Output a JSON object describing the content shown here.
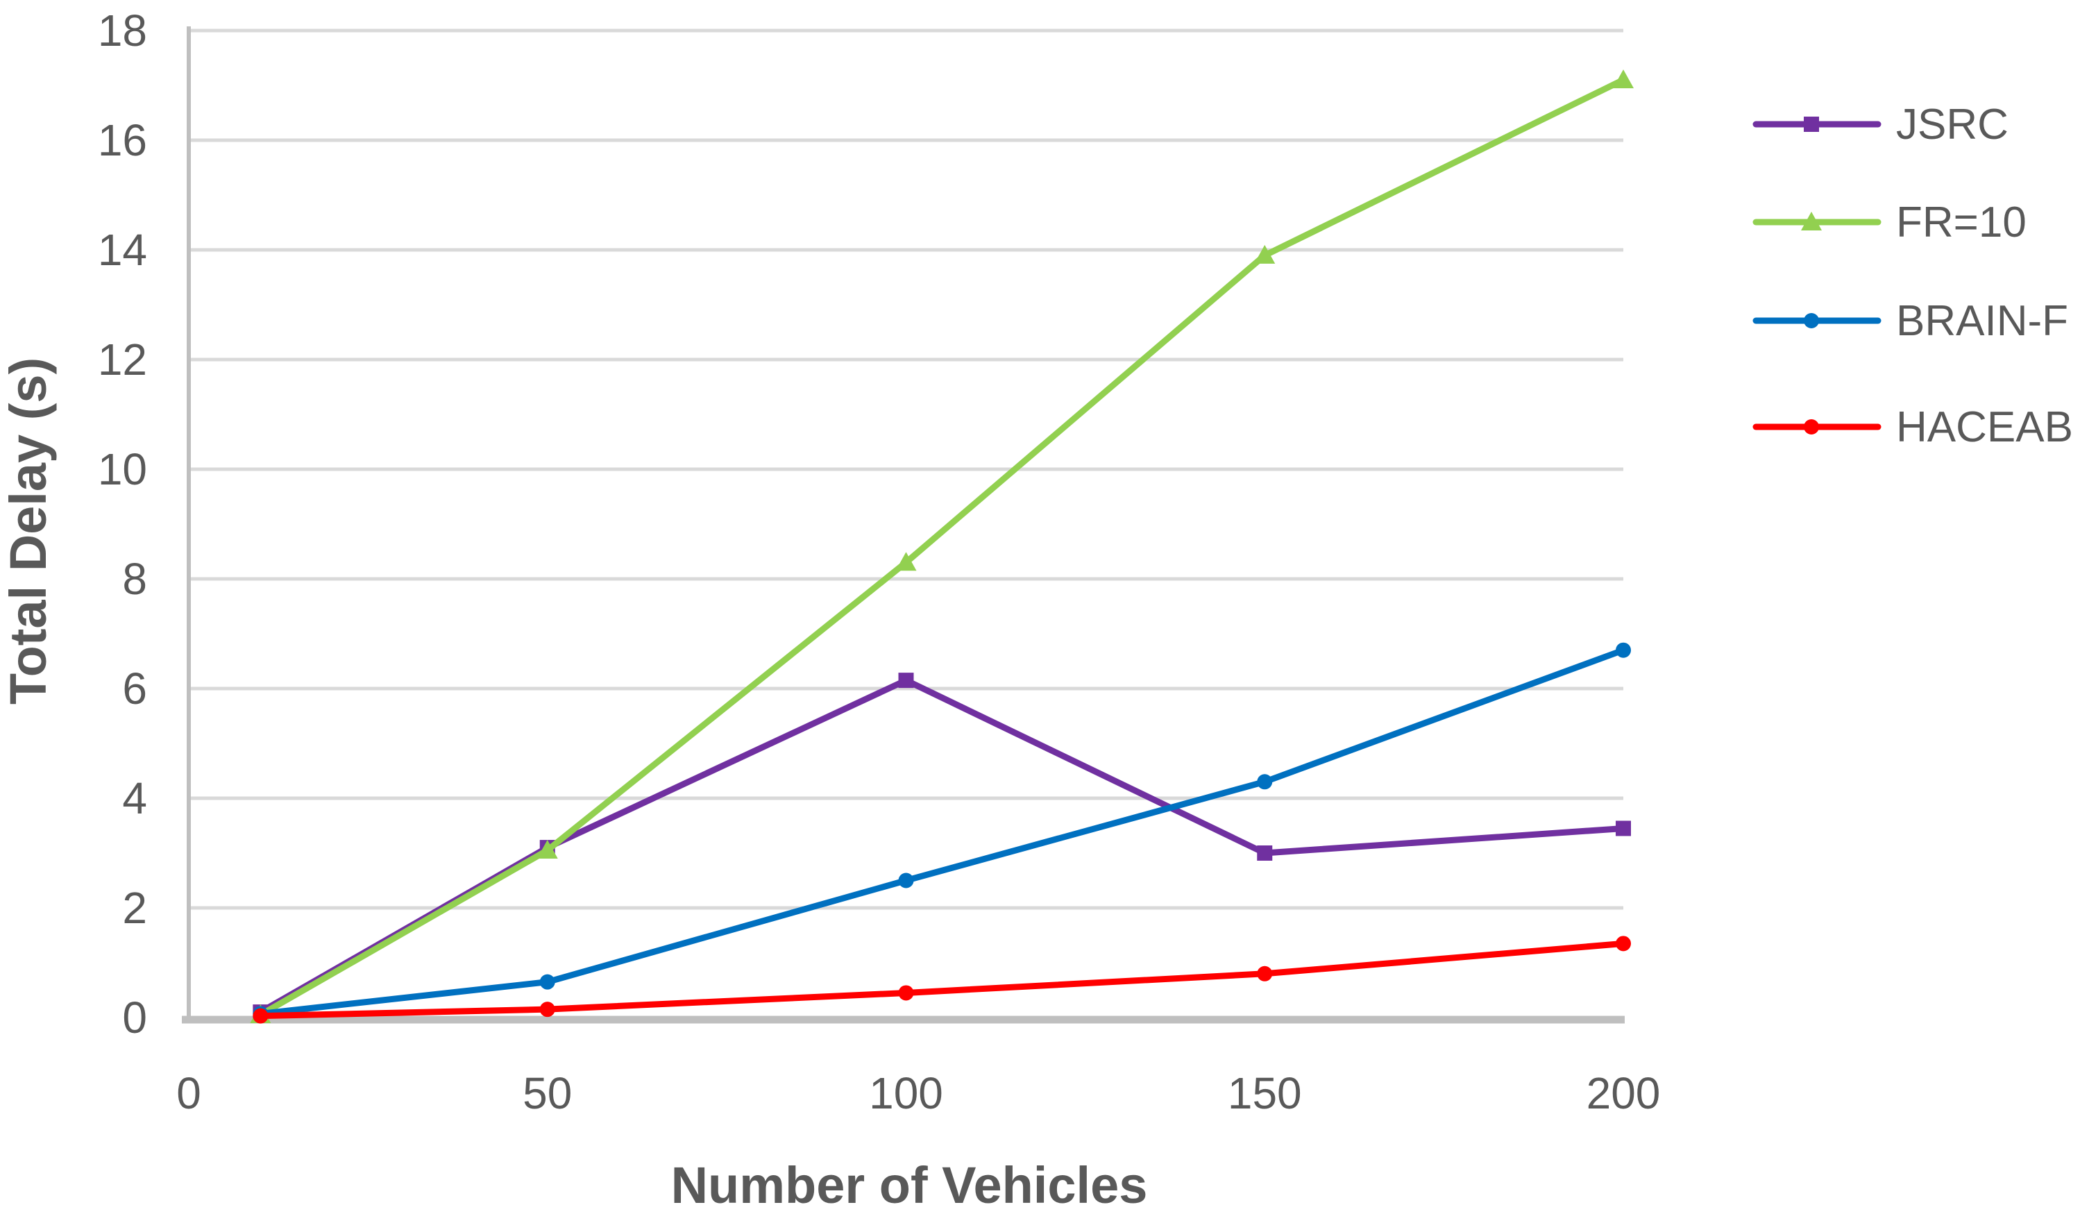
{
  "chart_data": {
    "type": "line",
    "xlabel": "Number of Vehicles",
    "ylabel": "Total Delay (s)",
    "x": [
      10,
      50,
      100,
      150,
      200
    ],
    "series": [
      {
        "name": "JSRC",
        "color": "#7030A0",
        "marker": "square",
        "values": [
          0.1,
          3.1,
          6.15,
          3.0,
          3.45
        ]
      },
      {
        "name": "FR=10",
        "color": "#92D050",
        "marker": "triangle",
        "values": [
          0.05,
          3.05,
          8.3,
          13.9,
          17.1
        ]
      },
      {
        "name": "BRAIN-F",
        "color": "#0070C0",
        "marker": "circle",
        "values": [
          0.07,
          0.65,
          2.5,
          4.3,
          6.7
        ]
      },
      {
        "name": "HACEAB",
        "color": "#FF0000",
        "marker": "circle",
        "values": [
          0.03,
          0.15,
          0.45,
          0.8,
          1.35
        ]
      }
    ],
    "x_ticks": [
      0,
      50,
      100,
      150,
      200
    ],
    "y_ticks": [
      0,
      2,
      4,
      6,
      8,
      10,
      12,
      14,
      16,
      18
    ],
    "xlim": [
      0,
      200
    ],
    "ylim": [
      0,
      18
    ],
    "grid": true,
    "legend_position": "right",
    "colors": {
      "gridline": "#D9D9D9",
      "axis_line": "#BFBFBF",
      "text": "#595959"
    }
  }
}
